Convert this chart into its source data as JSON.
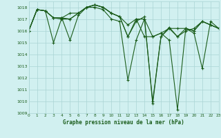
{
  "title": "Graphe pression niveau de la mer (hPa)",
  "bg_color": "#d1f0f0",
  "grid_color": "#aad4d4",
  "line_color": "#1a5c1a",
  "xlim": [
    0,
    23
  ],
  "ylim": [
    1009.0,
    1018.5
  ],
  "yticks": [
    1009,
    1010,
    1011,
    1012,
    1013,
    1014,
    1015,
    1016,
    1017,
    1018
  ],
  "xticks": [
    0,
    1,
    2,
    3,
    4,
    5,
    6,
    7,
    8,
    9,
    10,
    11,
    12,
    13,
    14,
    15,
    16,
    17,
    18,
    19,
    20,
    21,
    22,
    23
  ],
  "series": [
    [
      1016.0,
      1017.8,
      1017.7,
      1015.0,
      1017.1,
      1015.2,
      1017.3,
      1018.0,
      1018.0,
      1017.8,
      1017.0,
      1016.8,
      1011.8,
      1015.2,
      1017.0,
      1010.0,
      1015.5,
      1016.3,
      1015.5,
      1016.0,
      1016.2,
      1016.8,
      1016.5,
      1016.2
    ],
    [
      1016.0,
      1017.8,
      1017.7,
      1017.1,
      1017.1,
      1017.0,
      1017.5,
      1018.0,
      1018.2,
      1018.0,
      1017.5,
      1017.2,
      1015.5,
      1016.8,
      1017.2,
      1009.8,
      1015.5,
      1016.2,
      1016.2,
      1016.2,
      1016.0,
      1016.8,
      1016.5,
      1016.2
    ],
    [
      1016.0,
      1017.8,
      1017.7,
      1017.1,
      1017.0,
      1017.0,
      1017.5,
      1018.0,
      1018.2,
      1018.0,
      1017.5,
      1017.2,
      1015.5,
      1017.0,
      1015.5,
      1015.5,
      1015.8,
      1015.2,
      1009.3,
      1016.2,
      1016.0,
      1016.8,
      1016.5,
      1016.2
    ],
    [
      1016.0,
      1017.8,
      1017.7,
      1017.1,
      1017.1,
      1017.5,
      1017.5,
      1018.0,
      1018.2,
      1018.0,
      1017.5,
      1017.2,
      1016.5,
      1017.0,
      1017.0,
      1015.5,
      1015.8,
      1016.2,
      1015.5,
      1016.2,
      1015.8,
      1012.8,
      1016.8,
      1016.2
    ]
  ]
}
